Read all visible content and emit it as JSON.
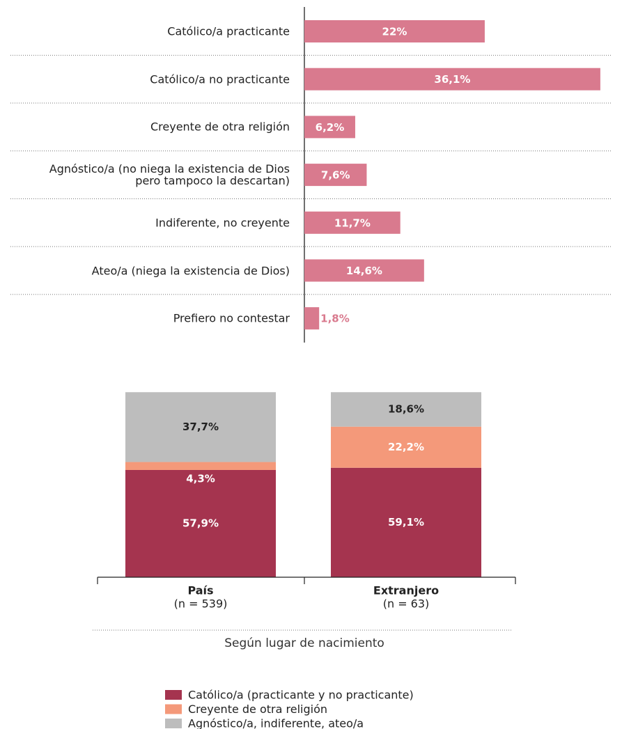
{
  "chart_data": [
    {
      "type": "hbar",
      "categories": [
        "Católico/a practicante",
        "Católico/a no practicante",
        "Creyente de otra religión",
        "Agnóstico/a (no niega la existencia de Dios\npero tampoco la descartan)",
        "Indiferente, no creyente",
        "Ateo/a (niega la existencia de Dios)",
        "Prefiero no contestar"
      ],
      "values": [
        22,
        36.1,
        6.2,
        7.6,
        11.7,
        14.6,
        1.8
      ],
      "value_labels": [
        "22%",
        "36,1%",
        "6,2%",
        "7,6%",
        "11,7%",
        "14,6%",
        "1,8%"
      ],
      "color": "#d97a8e"
    },
    {
      "type": "stacked_bar",
      "categories": [
        "País",
        "Extranjero"
      ],
      "category_notes": [
        "(n = 539)",
        "(n = 63)"
      ],
      "xlabel": "Según lugar de nacimiento",
      "series": [
        {
          "name": "Católico/a (practicante y no practicante)",
          "color": "#a5344f",
          "values": [
            57.9,
            59.1
          ],
          "value_labels": [
            "57,9%",
            "59,1%"
          ]
        },
        {
          "name": "Creyente de otra religión",
          "color": "#f4997a",
          "values": [
            4.3,
            22.2
          ],
          "value_labels": [
            "4,3%",
            "22,2%"
          ]
        },
        {
          "name": "Agnóstico/a, indiferente, ateo/a",
          "color": "#bdbdbd",
          "values": [
            37.7,
            18.6
          ],
          "value_labels": [
            "37,7%",
            "18,6%"
          ]
        }
      ]
    }
  ]
}
